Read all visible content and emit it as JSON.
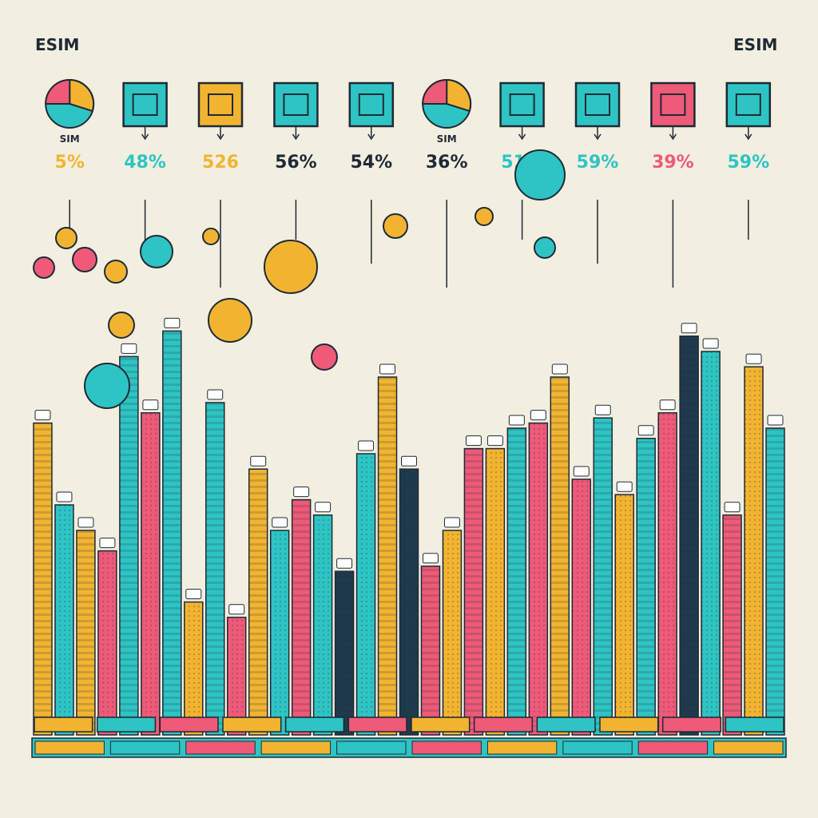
{
  "header": {
    "left_label": "ESIM",
    "right_label": "ESIM"
  },
  "chart_data": {
    "type": "bar",
    "title": "",
    "xlabel": "",
    "ylabel": "",
    "grid": false,
    "colors": {
      "yellow": "#f2b430",
      "teal": "#2ec4c4",
      "pink": "#ee5a78",
      "navy": "#1f3a4d",
      "background": "#f2eee0"
    },
    "callouts": [
      {
        "value": "5%",
        "icon": "pie-chart-icon",
        "color": "#f2b430",
        "label": "SIM"
      },
      {
        "value": "48%",
        "icon": "sim-card-icon",
        "color": "#2ec4c4"
      },
      {
        "value": "526",
        "icon": "card-reader-icon",
        "color": "#f2b430"
      },
      {
        "value": "56%",
        "icon": "round-chip-icon",
        "color": "#1f2a36"
      },
      {
        "value": "54%",
        "icon": "lock-icon",
        "color": "#1f2a36"
      },
      {
        "value": "36%",
        "icon": "pie-chart-icon",
        "color": "#1f2a36",
        "label": "SIM"
      },
      {
        "value": "51%",
        "icon": "shield-icon",
        "color": "#2ec4c4"
      },
      {
        "value": "59%",
        "icon": "monitor-icon",
        "color": "#2ec4c4"
      },
      {
        "value": "39%",
        "icon": "terminal-icon",
        "color": "#ee5a78"
      },
      {
        "value": "59%",
        "icon": "document-icon",
        "color": "#2ec4c4"
      }
    ],
    "bars": [
      {
        "value": 61,
        "color": "#f2b430"
      },
      {
        "value": 45,
        "color": "#2ec4c4"
      },
      {
        "value": 40,
        "color": "#f2b430"
      },
      {
        "value": 36,
        "color": "#ee5a78"
      },
      {
        "value": 74,
        "color": "#2ec4c4"
      },
      {
        "value": 63,
        "color": "#ee5a78"
      },
      {
        "value": 79,
        "color": "#2ec4c4"
      },
      {
        "value": 26,
        "color": "#f2b430"
      },
      {
        "value": 65,
        "color": "#2ec4c4"
      },
      {
        "value": 23,
        "color": "#ee5a78"
      },
      {
        "value": 52,
        "color": "#f2b430"
      },
      {
        "value": 40,
        "color": "#2ec4c4"
      },
      {
        "value": 46,
        "color": "#ee5a78"
      },
      {
        "value": 43,
        "color": "#2ec4c4"
      },
      {
        "value": 32,
        "color": "#1f3a4d"
      },
      {
        "value": 55,
        "color": "#2ec4c4"
      },
      {
        "value": 70,
        "color": "#f2b430"
      },
      {
        "value": 52,
        "color": "#1f3a4d"
      },
      {
        "value": 33,
        "color": "#ee5a78"
      },
      {
        "value": 40,
        "color": "#f2b430"
      },
      {
        "value": 56,
        "color": "#ee5a78"
      },
      {
        "value": 56,
        "color": "#f2b430"
      },
      {
        "value": 60,
        "color": "#2ec4c4"
      },
      {
        "value": 61,
        "color": "#ee5a78"
      },
      {
        "value": 70,
        "color": "#f2b430"
      },
      {
        "value": 50,
        "color": "#ee5a78"
      },
      {
        "value": 62,
        "color": "#2ec4c4"
      },
      {
        "value": 47,
        "color": "#f2b430"
      },
      {
        "value": 58,
        "color": "#2ec4c4"
      },
      {
        "value": 63,
        "color": "#ee5a78"
      },
      {
        "value": 78,
        "color": "#1f3a4d"
      },
      {
        "value": 75,
        "color": "#2ec4c4"
      },
      {
        "value": 43,
        "color": "#ee5a78"
      },
      {
        "value": 72,
        "color": "#f2b430"
      },
      {
        "value": 60,
        "color": "#2ec4c4"
      }
    ],
    "stacked_blocks": [
      {
        "color": "#f2b430"
      },
      {
        "color": "#2ec4c4"
      },
      {
        "color": "#ee5a78"
      },
      {
        "color": "#f2b430"
      },
      {
        "color": "#2ec4c4"
      },
      {
        "color": "#ee5a78"
      },
      {
        "color": "#f2b430"
      },
      {
        "color": "#ee5a78"
      },
      {
        "color": "#2ec4c4"
      },
      {
        "color": "#f2b430"
      },
      {
        "color": "#ee5a78"
      },
      {
        "color": "#2ec4c4"
      }
    ]
  }
}
